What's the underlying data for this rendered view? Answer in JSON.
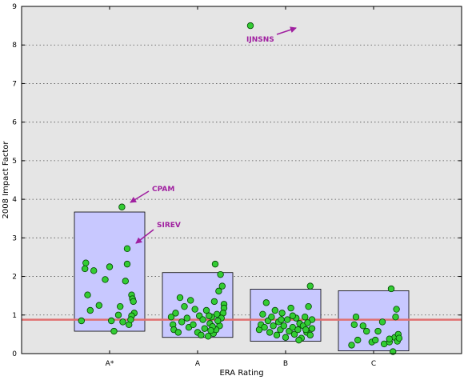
{
  "chart_data": {
    "type": "scatter",
    "xlabel": "ERA Rating",
    "ylabel": "2008 Impact Factor",
    "categories": [
      "A*",
      "A",
      "B",
      "C"
    ],
    "ylim": [
      0,
      9
    ],
    "yticks": [
      0,
      1,
      2,
      3,
      4,
      5,
      6,
      7,
      8,
      9
    ],
    "grid": true,
    "reference_line": {
      "y": 0.88
    },
    "boxes": [
      {
        "category": "A*",
        "low": 0.58,
        "high": 3.67
      },
      {
        "category": "A",
        "low": 0.42,
        "high": 2.1
      },
      {
        "category": "B",
        "low": 0.32,
        "high": 1.67
      },
      {
        "category": "C",
        "low": 0.07,
        "high": 1.63
      }
    ],
    "points": [
      {
        "category": "A*",
        "x": -0.32,
        "y": 0.85
      },
      {
        "category": "A*",
        "x": -0.27,
        "y": 2.35
      },
      {
        "category": "A*",
        "x": -0.28,
        "y": 2.2
      },
      {
        "category": "A*",
        "x": -0.25,
        "y": 1.52
      },
      {
        "category": "A*",
        "x": -0.22,
        "y": 1.12
      },
      {
        "category": "A*",
        "x": -0.18,
        "y": 2.15
      },
      {
        "category": "A*",
        "x": -0.12,
        "y": 1.25
      },
      {
        "category": "A*",
        "x": -0.05,
        "y": 1.92
      },
      {
        "category": "A*",
        "x": 0.0,
        "y": 2.25
      },
      {
        "category": "A*",
        "x": 0.02,
        "y": 0.85
      },
      {
        "category": "A*",
        "x": 0.05,
        "y": 0.58
      },
      {
        "category": "A*",
        "x": 0.1,
        "y": 1.0
      },
      {
        "category": "A*",
        "x": 0.12,
        "y": 1.22
      },
      {
        "category": "A*",
        "x": 0.15,
        "y": 0.82
      },
      {
        "category": "A*",
        "x": 0.18,
        "y": 1.88
      },
      {
        "category": "A*",
        "x": 0.2,
        "y": 2.32
      },
      {
        "category": "A*",
        "x": 0.22,
        "y": 0.75
      },
      {
        "category": "A*",
        "x": 0.25,
        "y": 1.52
      },
      {
        "category": "A*",
        "x": 0.26,
        "y": 1.42
      },
      {
        "category": "A*",
        "x": 0.27,
        "y": 1.35
      },
      {
        "category": "A*",
        "x": 0.28,
        "y": 1.05
      },
      {
        "category": "A*",
        "x": 0.25,
        "y": 0.98
      },
      {
        "category": "A*",
        "x": 0.24,
        "y": 0.88
      },
      {
        "category": "A*",
        "x": 0.14,
        "y": 3.8
      },
      {
        "category": "A*",
        "x": 0.2,
        "y": 2.72
      },
      {
        "category": "A",
        "x": -0.3,
        "y": 0.95
      },
      {
        "category": "A",
        "x": -0.28,
        "y": 0.75
      },
      {
        "category": "A",
        "x": -0.27,
        "y": 0.62
      },
      {
        "category": "A",
        "x": -0.25,
        "y": 1.05
      },
      {
        "category": "A",
        "x": -0.22,
        "y": 0.55
      },
      {
        "category": "A",
        "x": -0.2,
        "y": 1.45
      },
      {
        "category": "A",
        "x": -0.18,
        "y": 0.82
      },
      {
        "category": "A",
        "x": -0.15,
        "y": 1.22
      },
      {
        "category": "A",
        "x": -0.12,
        "y": 0.92
      },
      {
        "category": "A",
        "x": -0.1,
        "y": 0.68
      },
      {
        "category": "A",
        "x": -0.08,
        "y": 1.38
      },
      {
        "category": "A",
        "x": -0.05,
        "y": 0.75
      },
      {
        "category": "A",
        "x": -0.03,
        "y": 1.15
      },
      {
        "category": "A",
        "x": 0.0,
        "y": 0.55
      },
      {
        "category": "A",
        "x": 0.02,
        "y": 0.98
      },
      {
        "category": "A",
        "x": 0.04,
        "y": 0.48
      },
      {
        "category": "A",
        "x": 0.06,
        "y": 0.88
      },
      {
        "category": "A",
        "x": 0.08,
        "y": 0.65
      },
      {
        "category": "A",
        "x": 0.1,
        "y": 1.12
      },
      {
        "category": "A",
        "x": 0.12,
        "y": 0.45
      },
      {
        "category": "A",
        "x": 0.14,
        "y": 0.78
      },
      {
        "category": "A",
        "x": 0.16,
        "y": 0.95
      },
      {
        "category": "A",
        "x": 0.18,
        "y": 0.52
      },
      {
        "category": "A",
        "x": 0.2,
        "y": 2.32
      },
      {
        "category": "A",
        "x": 0.22,
        "y": 1.02
      },
      {
        "category": "A",
        "x": 0.24,
        "y": 1.62
      },
      {
        "category": "A",
        "x": 0.26,
        "y": 2.05
      },
      {
        "category": "A",
        "x": 0.28,
        "y": 1.75
      },
      {
        "category": "A",
        "x": 0.3,
        "y": 1.28
      },
      {
        "category": "A",
        "x": 0.3,
        "y": 1.18
      },
      {
        "category": "A",
        "x": 0.29,
        "y": 1.05
      },
      {
        "category": "A",
        "x": 0.27,
        "y": 0.92
      },
      {
        "category": "A",
        "x": 0.25,
        "y": 0.72
      },
      {
        "category": "A",
        "x": 0.23,
        "y": 0.85
      },
      {
        "category": "A",
        "x": 0.21,
        "y": 0.62
      },
      {
        "category": "A",
        "x": 0.19,
        "y": 1.35
      },
      {
        "category": "A",
        "x": 0.17,
        "y": 0.7
      },
      {
        "category": "A",
        "x": 0.15,
        "y": 0.6
      },
      {
        "category": "A",
        "x": 0.13,
        "y": 0.98
      },
      {
        "category": "B",
        "x": -0.3,
        "y": 0.62
      },
      {
        "category": "B",
        "x": -0.28,
        "y": 0.75
      },
      {
        "category": "B",
        "x": -0.26,
        "y": 1.02
      },
      {
        "category": "B",
        "x": -0.24,
        "y": 0.68
      },
      {
        "category": "B",
        "x": -0.22,
        "y": 1.32
      },
      {
        "category": "B",
        "x": -0.2,
        "y": 0.85
      },
      {
        "category": "B",
        "x": -0.18,
        "y": 0.55
      },
      {
        "category": "B",
        "x": -0.16,
        "y": 0.95
      },
      {
        "category": "B",
        "x": -0.14,
        "y": 0.72
      },
      {
        "category": "B",
        "x": -0.12,
        "y": 1.12
      },
      {
        "category": "B",
        "x": -0.1,
        "y": 0.48
      },
      {
        "category": "B",
        "x": -0.08,
        "y": 0.82
      },
      {
        "category": "B",
        "x": -0.06,
        "y": 0.62
      },
      {
        "category": "B",
        "x": -0.04,
        "y": 1.05
      },
      {
        "category": "B",
        "x": -0.02,
        "y": 0.72
      },
      {
        "category": "B",
        "x": 0.0,
        "y": 0.42
      },
      {
        "category": "B",
        "x": 0.02,
        "y": 0.88
      },
      {
        "category": "B",
        "x": 0.04,
        "y": 0.58
      },
      {
        "category": "B",
        "x": 0.06,
        "y": 1.18
      },
      {
        "category": "B",
        "x": 0.08,
        "y": 0.68
      },
      {
        "category": "B",
        "x": 0.1,
        "y": 0.5
      },
      {
        "category": "B",
        "x": 0.12,
        "y": 0.92
      },
      {
        "category": "B",
        "x": 0.14,
        "y": 0.62
      },
      {
        "category": "B",
        "x": 0.16,
        "y": 0.78
      },
      {
        "category": "B",
        "x": 0.18,
        "y": 0.4
      },
      {
        "category": "B",
        "x": 0.2,
        "y": 0.72
      },
      {
        "category": "B",
        "x": 0.22,
        "y": 0.95
      },
      {
        "category": "B",
        "x": 0.24,
        "y": 0.55
      },
      {
        "category": "B",
        "x": 0.26,
        "y": 1.22
      },
      {
        "category": "B",
        "x": 0.28,
        "y": 1.75
      },
      {
        "category": "B",
        "x": 0.3,
        "y": 0.88
      },
      {
        "category": "B",
        "x": 0.3,
        "y": 0.65
      },
      {
        "category": "B",
        "x": 0.28,
        "y": 0.48
      },
      {
        "category": "B",
        "x": 0.25,
        "y": 0.8
      },
      {
        "category": "B",
        "x": 0.23,
        "y": 0.62
      },
      {
        "category": "B",
        "x": 0.15,
        "y": 0.35
      },
      {
        "category": "B",
        "x": 0.08,
        "y": 0.98
      },
      {
        "category": "B",
        "x": -0.05,
        "y": 0.88
      },
      {
        "category": "C",
        "x": -0.25,
        "y": 0.22
      },
      {
        "category": "C",
        "x": -0.22,
        "y": 0.75
      },
      {
        "category": "C",
        "x": -0.2,
        "y": 0.95
      },
      {
        "category": "C",
        "x": -0.18,
        "y": 0.35
      },
      {
        "category": "C",
        "x": -0.12,
        "y": 0.72
      },
      {
        "category": "C",
        "x": -0.08,
        "y": 0.58
      },
      {
        "category": "C",
        "x": -0.02,
        "y": 0.3
      },
      {
        "category": "C",
        "x": 0.02,
        "y": 0.35
      },
      {
        "category": "C",
        "x": 0.05,
        "y": 0.58
      },
      {
        "category": "C",
        "x": 0.1,
        "y": 0.82
      },
      {
        "category": "C",
        "x": 0.12,
        "y": 0.25
      },
      {
        "category": "C",
        "x": 0.18,
        "y": 0.3
      },
      {
        "category": "C",
        "x": 0.2,
        "y": 1.68
      },
      {
        "category": "C",
        "x": 0.22,
        "y": 0.05
      },
      {
        "category": "C",
        "x": 0.24,
        "y": 0.42
      },
      {
        "category": "C",
        "x": 0.25,
        "y": 0.95
      },
      {
        "category": "C",
        "x": 0.26,
        "y": 1.15
      },
      {
        "category": "C",
        "x": 0.27,
        "y": 0.32
      },
      {
        "category": "C",
        "x": 0.28,
        "y": 0.5
      },
      {
        "category": "C",
        "x": 0.29,
        "y": 0.4
      },
      {
        "category": "C",
        "x": 0.18,
        "y": 0.38
      },
      {
        "x": 1.6,
        "y": 8.5
      }
    ],
    "annotations": [
      {
        "text": "IJNSNS",
        "x": 1.6,
        "y": 8.5
      },
      {
        "text": "CPAM",
        "category": "A*",
        "dx": 0.14,
        "y": 3.8
      },
      {
        "text": "SIREV",
        "category": "A*",
        "dx": 0.2,
        "y": 2.72
      }
    ],
    "colors": {
      "plot_bg": "#e5e5e5",
      "box_fill": "#c8c8ff",
      "box_stroke": "#000000",
      "point_fill": "#33cc33",
      "point_stroke": "#004400",
      "reference_line": "#e07070",
      "annotation": "#a020a0",
      "grid": "#555555"
    }
  }
}
